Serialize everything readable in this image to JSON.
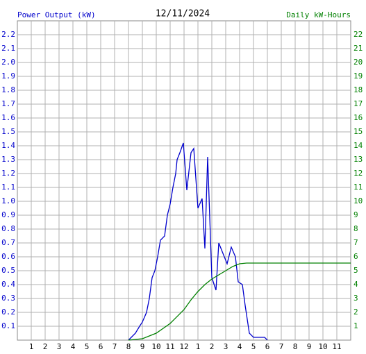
{
  "chart_data": {
    "type": "line",
    "title": "12/11/2024",
    "ylabel": "Power Output (kW)",
    "y2label": "Daily kW-Hours",
    "ylabel_color": "#0000cc",
    "y2label_color": "#008000",
    "xlim": [
      0,
      24
    ],
    "xticks": [
      1,
      2,
      3,
      4,
      5,
      6,
      7,
      8,
      9,
      10,
      11,
      12,
      {
        "value": 13,
        "label": "1"
      },
      {
        "value": 14,
        "label": "2"
      },
      {
        "value": 15,
        "label": "3"
      },
      {
        "value": 16,
        "label": "4"
      },
      {
        "value": 17,
        "label": "5"
      },
      {
        "value": 18,
        "label": "6"
      },
      {
        "value": 19,
        "label": "7"
      },
      {
        "value": 20,
        "label": "8"
      },
      {
        "value": 21,
        "label": "9"
      },
      {
        "value": 22,
        "label": "10"
      },
      {
        "value": 23,
        "label": "11"
      }
    ],
    "ylim": [
      0,
      2.3
    ],
    "yticks": [
      0.1,
      0.2,
      0.3,
      0.4,
      0.5,
      0.6,
      0.7,
      0.8,
      0.9,
      {
        "value": 1,
        "label": "1.0"
      },
      1.1,
      1.2,
      1.3,
      1.4,
      1.5,
      1.6,
      1.7,
      1.8,
      1.9,
      {
        "value": 2,
        "label": "2.0"
      },
      2.1,
      2.2
    ],
    "y2lim": [
      0,
      23
    ],
    "y2ticks": [
      1,
      2,
      3,
      4,
      5,
      6,
      7,
      8,
      9,
      10,
      11,
      12,
      13,
      14,
      15,
      16,
      17,
      18,
      19,
      20,
      21,
      22
    ],
    "grid": true,
    "series": [
      {
        "color": "#0000cc",
        "axis": "y",
        "x": [
          8.0,
          8.2,
          8.5,
          8.8,
          9.0,
          9.3,
          9.5,
          9.7,
          9.9,
          10.1,
          10.3,
          10.6,
          10.8,
          11.0,
          11.2,
          11.4,
          11.5,
          11.7,
          11.95,
          12.2,
          12.5,
          12.7,
          13.0,
          13.3,
          13.5,
          13.7,
          14.0,
          14.3,
          14.5,
          14.9,
          15.1,
          15.4,
          15.7,
          15.9,
          16.2,
          16.4,
          16.7,
          17.0,
          17.8,
          18.0
        ],
        "values": [
          0,
          0.02,
          0.05,
          0.1,
          0.13,
          0.2,
          0.3,
          0.45,
          0.5,
          0.6,
          0.72,
          0.75,
          0.9,
          0.98,
          1.1,
          1.2,
          1.3,
          1.35,
          1.42,
          1.08,
          1.35,
          1.38,
          0.95,
          1.02,
          0.66,
          1.32,
          0.45,
          0.36,
          0.7,
          0.6,
          0.55,
          0.67,
          0.6,
          0.42,
          0.4,
          0.25,
          0.05,
          0.02,
          0.02,
          0
        ]
      },
      {
        "color": "#008000",
        "axis": "y2",
        "x": [
          8.0,
          9.0,
          10.0,
          11.0,
          12.0,
          12.5,
          13.0,
          13.5,
          14.0,
          14.5,
          15.0,
          15.5,
          16.0,
          16.5,
          24.0
        ],
        "values": [
          0,
          0.1,
          0.5,
          1.2,
          2.2,
          2.9,
          3.5,
          4.0,
          4.4,
          4.7,
          5.0,
          5.3,
          5.5,
          5.55,
          5.55
        ]
      }
    ]
  }
}
